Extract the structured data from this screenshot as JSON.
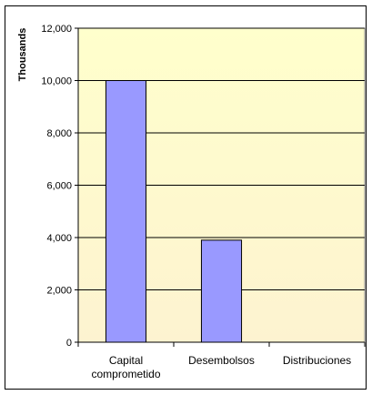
{
  "chart_data": {
    "type": "bar",
    "title": "",
    "xlabel": "",
    "ylabel": "Thousands",
    "categories": [
      [
        "Capital",
        "comprometido"
      ],
      [
        "Desembolsos"
      ],
      [
        "Distribuciones"
      ]
    ],
    "values": [
      10000,
      3900,
      0
    ],
    "ylim": [
      0,
      12000
    ],
    "yticks": [
      0,
      2000,
      4000,
      6000,
      8000,
      10000,
      12000
    ],
    "ytick_labels": [
      "0",
      "2,000",
      "4,000",
      "6,000",
      "8,000",
      "10,000",
      "12,000"
    ],
    "grid": true,
    "legend": "none",
    "colors": {
      "bar_fill": "#9999ff",
      "bar_stroke": "#000000",
      "plot_background": "#ffffcc",
      "gridline": "#000000"
    }
  }
}
